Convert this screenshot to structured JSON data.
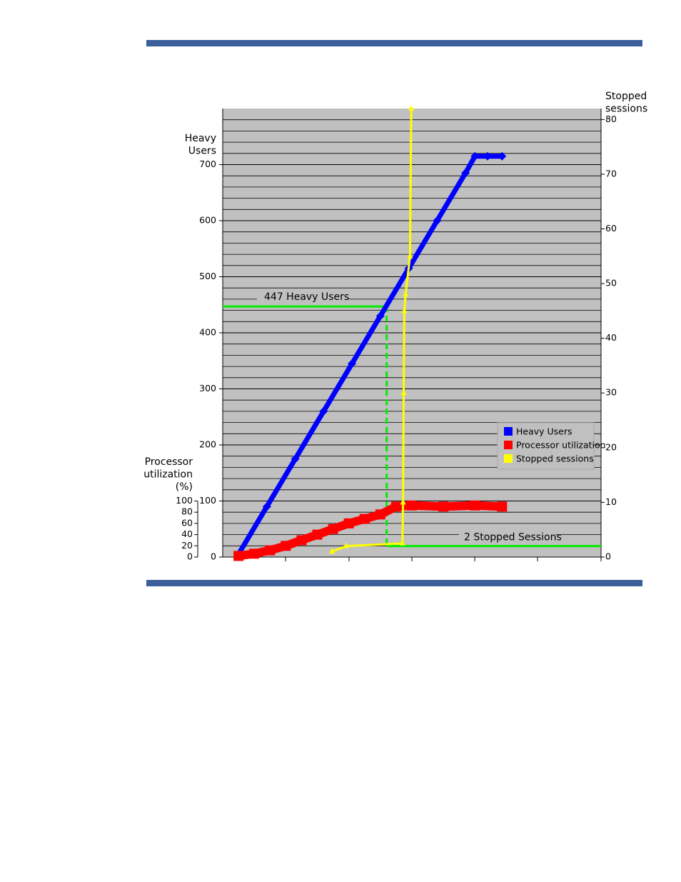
{
  "chart_data": {
    "type": "line",
    "y_title": [
      "Heavy",
      "Users"
    ],
    "y2_title": [
      "Stopped",
      "sessions"
    ],
    "y3_title": [
      "Processor",
      "utilization",
      "(%)"
    ],
    "xlim": [
      0,
      6
    ],
    "ylim": [
      0,
      800
    ],
    "yticks": [
      0,
      100,
      200,
      300,
      400,
      500,
      600,
      700
    ],
    "y2lim": [
      0,
      82
    ],
    "y2ticks": [
      0,
      10,
      20,
      30,
      40,
      50,
      60,
      70,
      80
    ],
    "y3lim": [
      0,
      800
    ],
    "y3ticks": [
      0,
      20,
      40,
      60,
      80,
      100
    ],
    "grid": true,
    "legend": "lower right",
    "series": [
      {
        "name": "Heavy Users",
        "color": "#0000ff",
        "axis": "y",
        "x": [
          0.25,
          0.7,
          1.15,
          1.6,
          2.05,
          2.5,
          2.95,
          3.4,
          3.85,
          4.0,
          4.2,
          4.43
        ],
        "values": [
          5,
          90,
          175,
          260,
          345,
          430,
          515,
          600,
          685,
          715,
          715,
          715
        ]
      },
      {
        "name": "Processor utilization",
        "color": "#ff0000",
        "axis": "y3",
        "x": [
          0.25,
          0.5,
          0.75,
          1.0,
          1.25,
          1.5,
          1.75,
          2.0,
          2.25,
          2.5,
          2.75,
          3.0,
          3.5,
          4.0,
          4.43
        ],
        "values": [
          2,
          6,
          12,
          20,
          30,
          40,
          50,
          60,
          68,
          76,
          90,
          92,
          90,
          92,
          90
        ]
      },
      {
        "name": "Stopped sessions",
        "color": "#ffff00",
        "axis": "y2",
        "x": [
          1.73,
          1.96,
          2.85,
          2.86,
          2.87,
          2.88,
          2.9,
          2.97,
          2.99
        ],
        "values": [
          1,
          2,
          2.5,
          10,
          30,
          45,
          48,
          55,
          82
        ]
      }
    ],
    "annotations": [
      {
        "text": "447 Heavy Users",
        "value": 447,
        "x": 2.6,
        "axis": "y",
        "color": "#00ee00"
      },
      {
        "text": "2 Stopped Sessions",
        "value": 2,
        "x": 2.6,
        "axis": "y2",
        "color": "#00ee00"
      }
    ]
  }
}
